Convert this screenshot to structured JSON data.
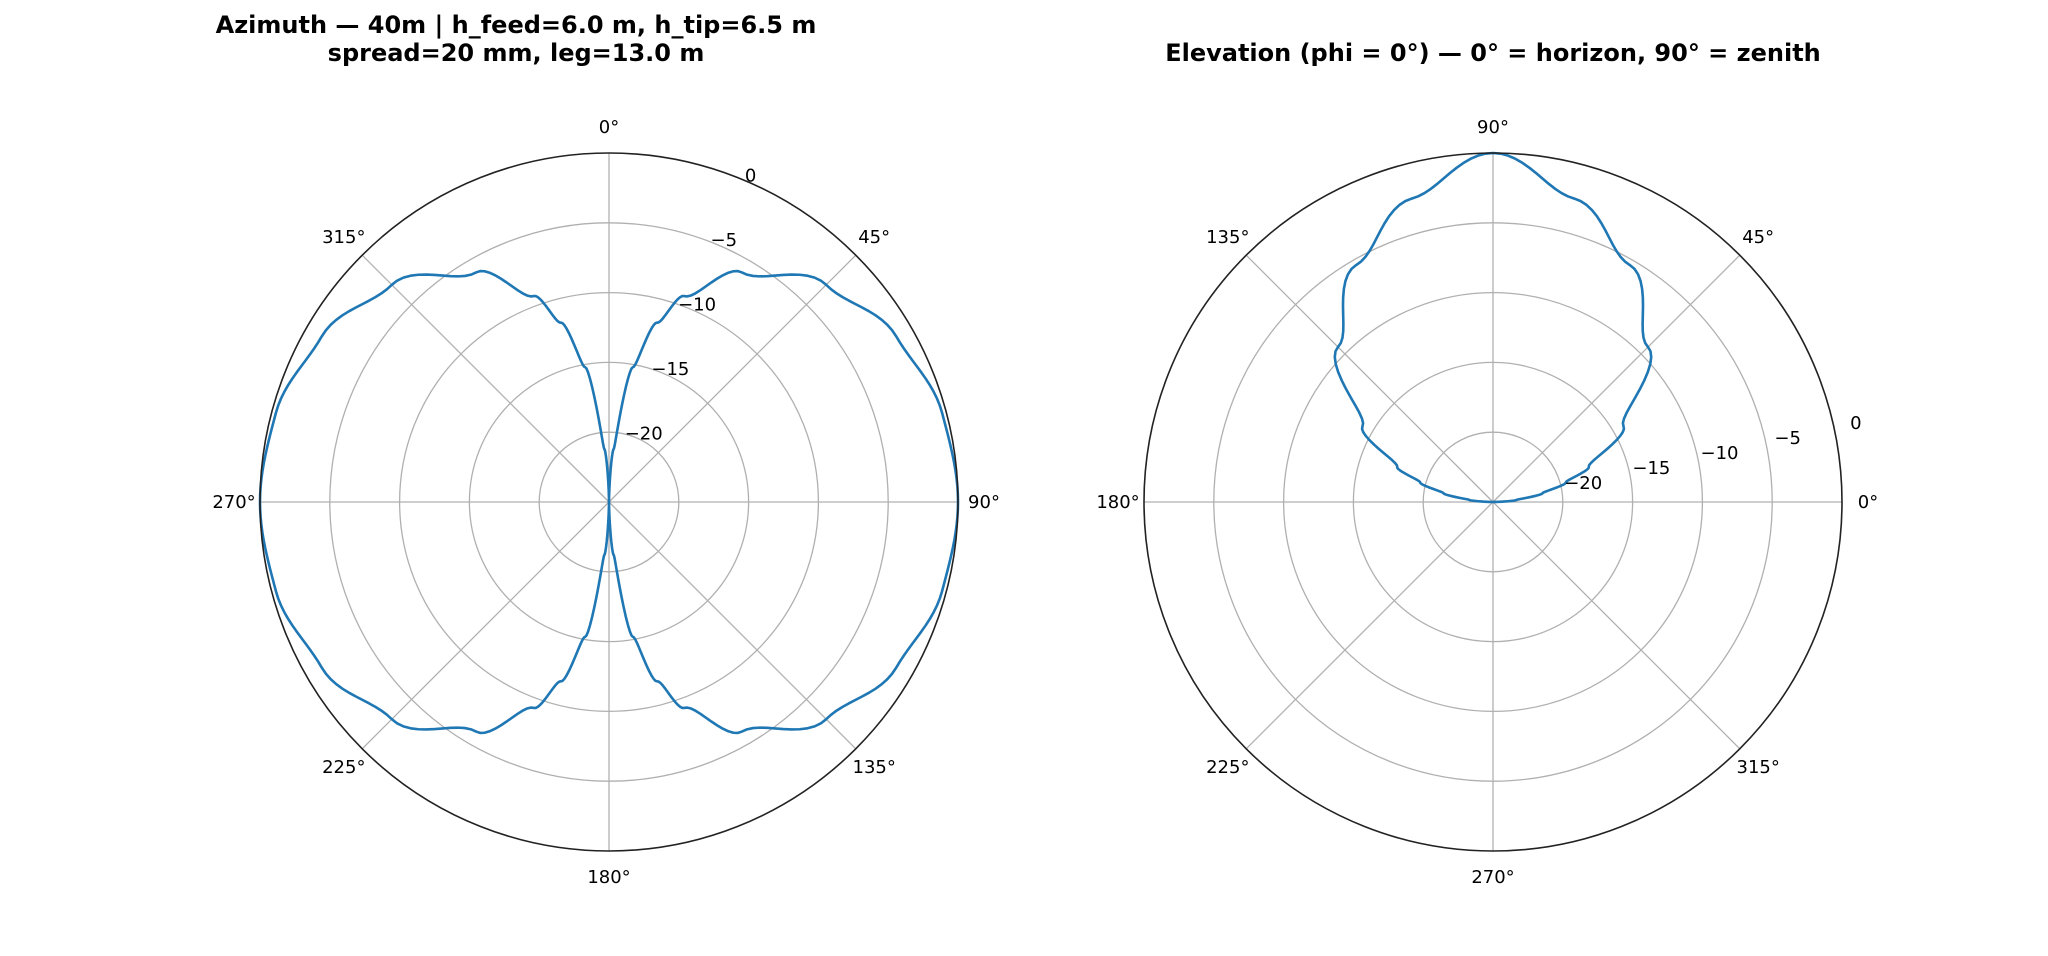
{
  "chart_data": [
    {
      "type": "polar-line",
      "title_line1": "Azimuth — 40m  |  h_feed=6.0 m, h_tip=6.5 m",
      "title_line2": "spread=20 mm, leg=13.0 m",
      "theta_zero_location": "top",
      "theta_direction": "clockwise",
      "theta_ticks": [
        0,
        45,
        90,
        135,
        180,
        225,
        270,
        315
      ],
      "theta_tick_labels": [
        "0°",
        "45°",
        "90°",
        "135°",
        "180°",
        "225°",
        "270°",
        "315°"
      ],
      "rlim": [
        -25,
        0
      ],
      "r_ticks": [
        -20,
        -15,
        -10,
        -5,
        0
      ],
      "r_tick_labels": [
        "−20",
        "−15",
        "−10",
        "−5",
        "0"
      ],
      "grid": true,
      "series": [
        {
          "color": "#1f77b4",
          "pattern": "dipole |sin(theta)| lobes, nulls at 0° and 180°, max 0 dB at 90° and 270°",
          "theta_deg": [
            0,
            5,
            10,
            15,
            20,
            30,
            45,
            60,
            75,
            90,
            105,
            120,
            135,
            150,
            160,
            165,
            170,
            175,
            180,
            185,
            190,
            195,
            200,
            210,
            225,
            240,
            255,
            270,
            285,
            300,
            315,
            330,
            340,
            345,
            350,
            355
          ],
          "values_db": [
            -25,
            -21.2,
            -15.2,
            -11.7,
            -9.3,
            -6.0,
            -3.0,
            -1.25,
            -0.3,
            0,
            -0.3,
            -1.25,
            -3.0,
            -6.0,
            -9.3,
            -11.7,
            -15.2,
            -21.2,
            -25,
            -21.2,
            -15.2,
            -11.7,
            -9.3,
            -6.0,
            -3.0,
            -1.25,
            -0.3,
            0,
            -0.3,
            -1.25,
            -3.0,
            -6.0,
            -9.3,
            -11.7,
            -15.2,
            -21.2
          ]
        }
      ]
    },
    {
      "type": "polar-line",
      "title": "Elevation (phi = 0°) — 0° = horizon, 90° = zenith",
      "theta_zero_location": "right",
      "theta_direction": "counterclockwise",
      "theta_ticks": [
        0,
        45,
        90,
        135,
        180,
        225,
        270,
        315
      ],
      "theta_tick_labels": [
        "0°",
        "45°",
        "90°",
        "135°",
        "180°",
        "225°",
        "270°",
        "315°"
      ],
      "rlim": [
        -25,
        0
      ],
      "r_ticks": [
        -20,
        -15,
        -10,
        -5,
        0
      ],
      "r_tick_labels": [
        "−20",
        "−15",
        "−10",
        "−5",
        "0"
      ],
      "grid": true,
      "series": [
        {
          "color": "#1f77b4",
          "pattern": "upper-hemisphere lobe, maximum 0 dB at zenith (90°), nulls at horizon (0° and 180°)",
          "theta_deg": [
            0,
            5,
            10,
            15,
            20,
            30,
            45,
            60,
            75,
            90,
            105,
            120,
            135,
            150,
            160,
            165,
            170,
            175,
            180
          ],
          "values_db": [
            -25,
            -23.3,
            -21.4,
            -19.6,
            -17.7,
            -14.2,
            -9.3,
            -5.4,
            -2.5,
            0,
            -2.5,
            -5.4,
            -9.3,
            -14.2,
            -17.7,
            -19.6,
            -21.4,
            -23.3,
            -25
          ]
        }
      ]
    }
  ]
}
